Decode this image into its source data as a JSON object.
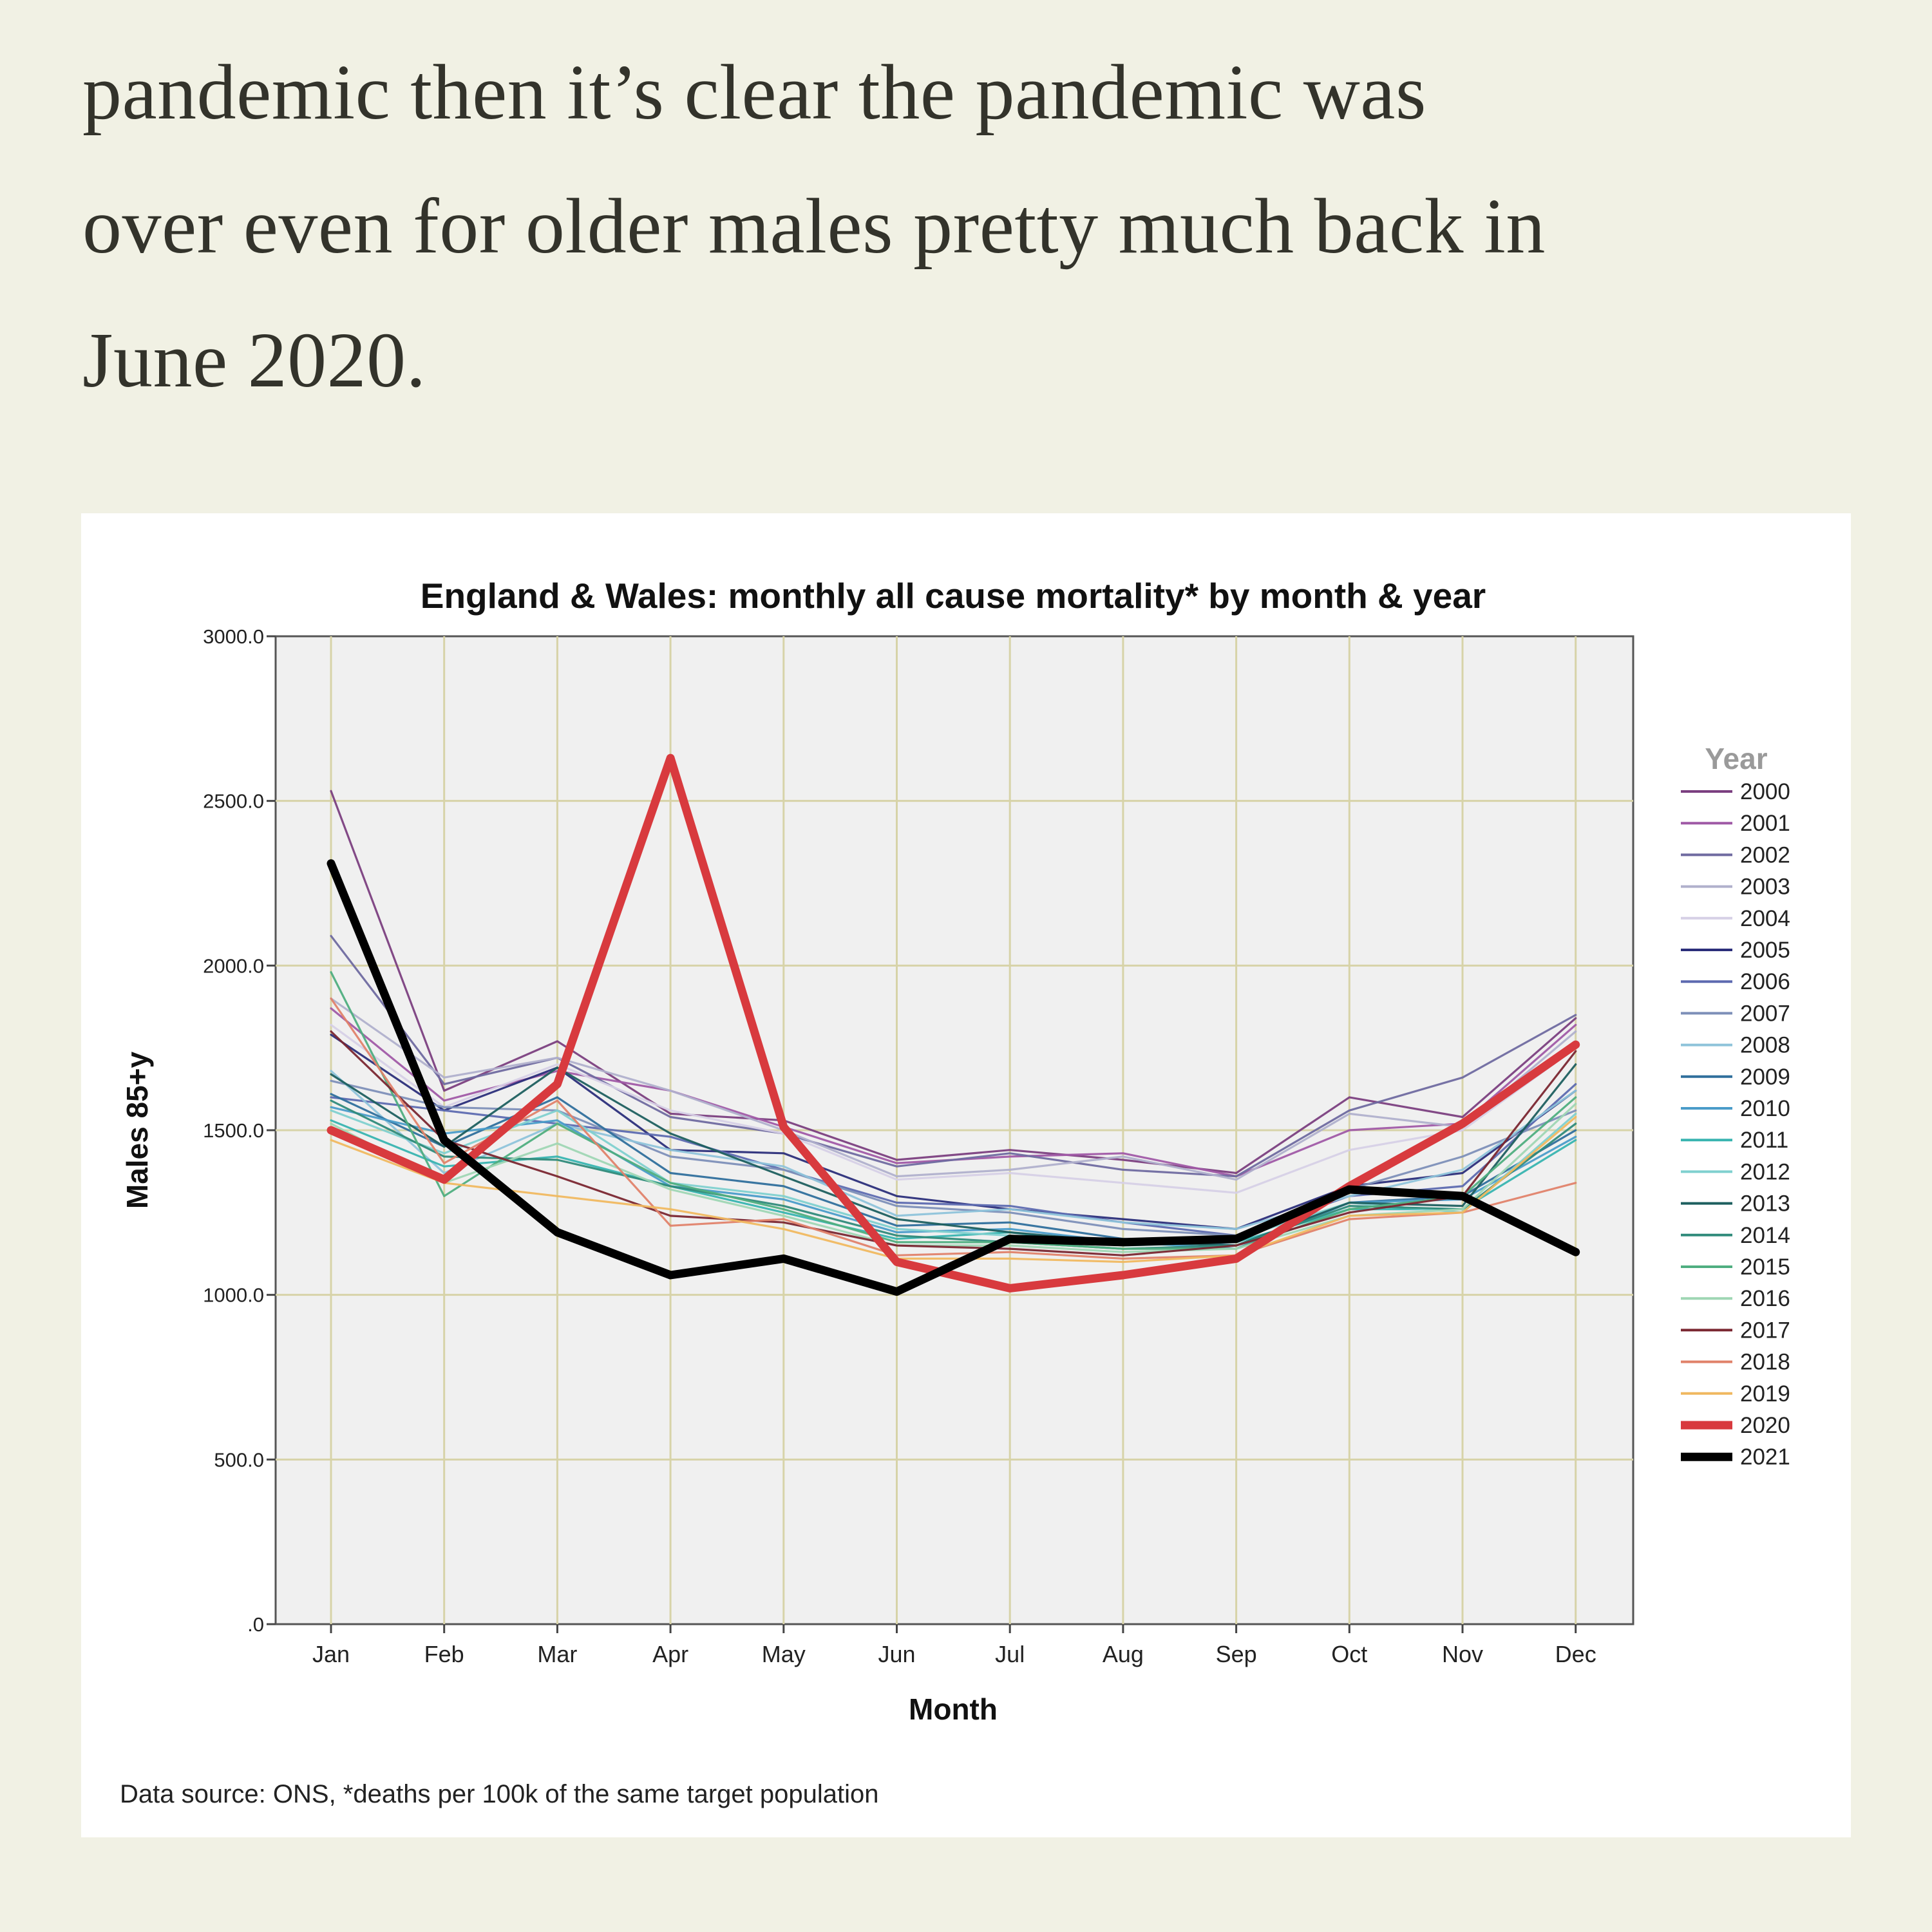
{
  "article": {
    "lines": [
      "pandemic then it’s clear the pandemic was",
      "over even for older males pretty much back in",
      "June 2020."
    ]
  },
  "figure": {
    "source_note": "Data source: ONS, *deaths per 100k of the same target population"
  },
  "chart_data": {
    "type": "line",
    "title": "England & Wales: monthly all cause mortality* by month & year",
    "xlabel": "Month",
    "ylabel": "Males 85+y",
    "ylim": [
      0,
      3000
    ],
    "y_ticks": [
      0,
      500,
      1000,
      1500,
      2000,
      2500,
      3000
    ],
    "y_tick_labels": [
      ".0",
      "500.0",
      "1000.0",
      "1500.0",
      "2000.0",
      "2500.0",
      "3000.0"
    ],
    "categories": [
      "Jan",
      "Feb",
      "Mar",
      "Apr",
      "May",
      "Jun",
      "Jul",
      "Aug",
      "Sep",
      "Oct",
      "Nov",
      "Dec"
    ],
    "grid": true,
    "legend_title": "Year",
    "legend_position": "right",
    "series": [
      {
        "name": "2000",
        "color": "#7b3f80",
        "values": [
          2530,
          1620,
          1770,
          1550,
          1530,
          1410,
          1440,
          1410,
          1370,
          1600,
          1540,
          1840
        ]
      },
      {
        "name": "2001",
        "color": "#a05aa6",
        "values": [
          1870,
          1590,
          1680,
          1620,
          1510,
          1400,
          1420,
          1430,
          1360,
          1500,
          1520,
          1820
        ]
      },
      {
        "name": "2002",
        "color": "#6f6aa0",
        "values": [
          2090,
          1640,
          1720,
          1540,
          1490,
          1390,
          1430,
          1380,
          1360,
          1560,
          1660,
          1850
        ]
      },
      {
        "name": "2003",
        "color": "#b0b0cc",
        "values": [
          1900,
          1660,
          1720,
          1620,
          1500,
          1360,
          1380,
          1420,
          1350,
          1550,
          1510,
          1800
        ]
      },
      {
        "name": "2004",
        "color": "#d6d0e6",
        "values": [
          1820,
          1570,
          1700,
          1560,
          1490,
          1350,
          1370,
          1340,
          1310,
          1440,
          1500,
          1750
        ]
      },
      {
        "name": "2005",
        "color": "#2b2e7a",
        "values": [
          1790,
          1560,
          1690,
          1440,
          1430,
          1300,
          1260,
          1230,
          1200,
          1330,
          1370,
          1620
        ]
      },
      {
        "name": "2006",
        "color": "#5d6ab0",
        "values": [
          1600,
          1560,
          1520,
          1480,
          1380,
          1280,
          1270,
          1220,
          1180,
          1300,
          1330,
          1640
        ]
      },
      {
        "name": "2007",
        "color": "#7d8fb8",
        "values": [
          1650,
          1570,
          1560,
          1420,
          1380,
          1270,
          1250,
          1200,
          1180,
          1320,
          1420,
          1560
        ]
      },
      {
        "name": "2008",
        "color": "#8ec3da",
        "values": [
          1680,
          1370,
          1520,
          1440,
          1390,
          1240,
          1260,
          1220,
          1200,
          1300,
          1380,
          1620
        ]
      },
      {
        "name": "2009",
        "color": "#2f6f9c",
        "values": [
          1610,
          1450,
          1600,
          1370,
          1330,
          1210,
          1220,
          1170,
          1150,
          1280,
          1300,
          1500
        ]
      },
      {
        "name": "2010",
        "color": "#4a9cc9",
        "values": [
          1570,
          1490,
          1530,
          1330,
          1290,
          1190,
          1200,
          1160,
          1140,
          1280,
          1290,
          1480
        ]
      },
      {
        "name": "2011",
        "color": "#38b4b0",
        "values": [
          1530,
          1390,
          1420,
          1330,
          1250,
          1170,
          1190,
          1150,
          1160,
          1260,
          1260,
          1470
        ]
      },
      {
        "name": "2012",
        "color": "#7fd0cf",
        "values": [
          1560,
          1430,
          1560,
          1340,
          1300,
          1200,
          1180,
          1150,
          1170,
          1280,
          1250,
          1550
        ]
      },
      {
        "name": "2013",
        "color": "#1e5f5f",
        "values": [
          1670,
          1450,
          1690,
          1490,
          1360,
          1230,
          1190,
          1160,
          1150,
          1280,
          1270,
          1700
        ]
      },
      {
        "name": "2014",
        "color": "#2f8a7a",
        "values": [
          1590,
          1420,
          1410,
          1330,
          1270,
          1180,
          1160,
          1140,
          1150,
          1270,
          1260,
          1520
        ]
      },
      {
        "name": "2015",
        "color": "#4fae80",
        "values": [
          1980,
          1300,
          1520,
          1340,
          1260,
          1160,
          1160,
          1140,
          1140,
          1260,
          1300,
          1600
        ]
      },
      {
        "name": "2016",
        "color": "#9fd6b4",
        "values": [
          1520,
          1340,
          1460,
          1320,
          1240,
          1150,
          1150,
          1130,
          1140,
          1240,
          1260,
          1580
        ]
      },
      {
        "name": "2017",
        "color": "#7a2630",
        "values": [
          1800,
          1470,
          1360,
          1240,
          1220,
          1150,
          1140,
          1120,
          1150,
          1250,
          1300,
          1740
        ]
      },
      {
        "name": "2018",
        "color": "#e0826a",
        "values": [
          1900,
          1400,
          1590,
          1210,
          1230,
          1120,
          1130,
          1110,
          1120,
          1230,
          1250,
          1340
        ]
      },
      {
        "name": "2019",
        "color": "#f0b860",
        "values": [
          1470,
          1340,
          1300,
          1260,
          1200,
          1110,
          1110,
          1100,
          1120,
          1240,
          1250,
          1540
        ]
      },
      {
        "name": "2020",
        "color": "#d83a3e",
        "values": [
          1500,
          1350,
          1640,
          2630,
          1510,
          1100,
          1020,
          1060,
          1110,
          1330,
          1520,
          1760
        ]
      },
      {
        "name": "2021",
        "color": "#000000",
        "values": [
          2310,
          1470,
          1190,
          1060,
          1110,
          1010,
          1170,
          1160,
          1170,
          1320,
          1300,
          1130
        ]
      }
    ]
  }
}
